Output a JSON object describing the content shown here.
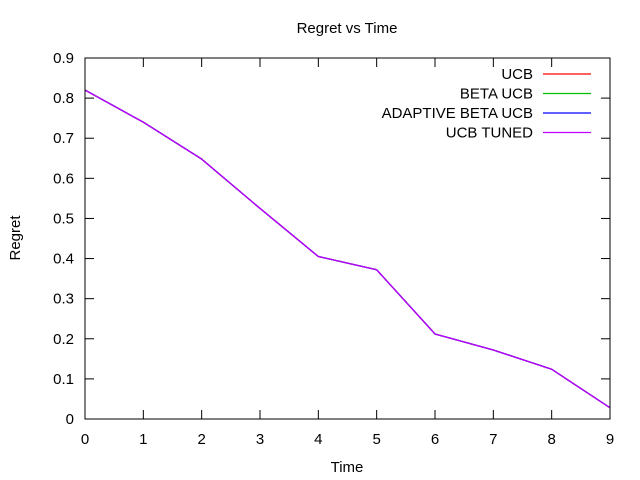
{
  "chart_data": {
    "type": "line",
    "title": "Regret vs Time",
    "xlabel": "Time",
    "ylabel": "Regret",
    "xlim": [
      0,
      9
    ],
    "ylim": [
      0,
      0.9
    ],
    "grid": false,
    "legend_position": "top-right",
    "x": [
      0,
      1,
      2,
      3,
      4,
      5,
      6,
      7,
      8,
      9
    ],
    "x_ticks": [
      "0",
      "1",
      "2",
      "3",
      "4",
      "5",
      "6",
      "7",
      "8",
      "9"
    ],
    "y_ticks": [
      "0",
      "0.1",
      "0.2",
      "0.3",
      "0.4",
      "0.5",
      "0.6",
      "0.7",
      "0.8",
      "0.9"
    ],
    "series": [
      {
        "name": "UCB",
        "color": "#ff0000",
        "values": [
          0.82,
          0.74,
          0.648,
          0.525,
          0.405,
          0.372,
          0.212,
          0.172,
          0.124,
          0.028
        ]
      },
      {
        "name": "BETA UCB",
        "color": "#00c000",
        "values": [
          0.82,
          0.74,
          0.648,
          0.525,
          0.405,
          0.372,
          0.212,
          0.172,
          0.124,
          0.028
        ]
      },
      {
        "name": "ADAPTIVE BETA UCB",
        "color": "#0000ff",
        "values": [
          0.82,
          0.74,
          0.648,
          0.525,
          0.405,
          0.372,
          0.212,
          0.172,
          0.124,
          0.028
        ]
      },
      {
        "name": "UCB TUNED",
        "color": "#c000ff",
        "values": [
          0.82,
          0.74,
          0.648,
          0.525,
          0.405,
          0.372,
          0.212,
          0.172,
          0.124,
          0.028
        ]
      }
    ]
  }
}
